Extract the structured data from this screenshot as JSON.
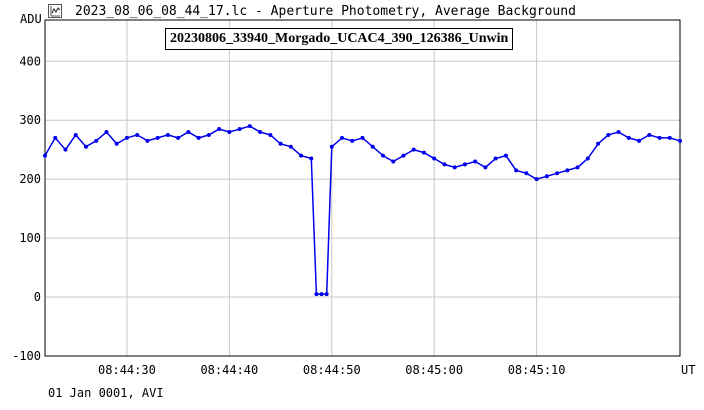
{
  "window": {
    "title": "2023_08_06_08_44_17.lc - Aperture Photometry, Average Background"
  },
  "icons": {
    "app": "chart-app-icon"
  },
  "footer": {
    "text": "01 Jan 0001, AVI"
  },
  "colors": {
    "series": "#0000ee",
    "grid": "#c8c8c8",
    "axis": "#000000"
  },
  "chart_data": {
    "type": "line",
    "title": "20230806_33940_Morgado_UCAC4_390_126386_Unwin",
    "ylabel": "ADU",
    "xlabel": "UT",
    "ylim": [
      -100,
      470
    ],
    "xlim": [
      "08:44:22",
      "08:45:24"
    ],
    "yticks": [
      -100,
      0,
      100,
      200,
      300,
      400
    ],
    "xticks": [
      "08:44:30",
      "08:44:40",
      "08:44:50",
      "08:45:00",
      "08:45:10"
    ],
    "grid": true,
    "series": [
      {
        "points": [
          [
            "08:44:22",
            240
          ],
          [
            "08:44:23",
            270
          ],
          [
            "08:44:24",
            250
          ],
          [
            "08:44:25",
            275
          ],
          [
            "08:44:26",
            255
          ],
          [
            "08:44:27",
            265
          ],
          [
            "08:44:28",
            280
          ],
          [
            "08:44:29",
            260
          ],
          [
            "08:44:30",
            270
          ],
          [
            "08:44:31",
            275
          ],
          [
            "08:44:32",
            265
          ],
          [
            "08:44:33",
            270
          ],
          [
            "08:44:34",
            275
          ],
          [
            "08:44:35",
            270
          ],
          [
            "08:44:36",
            280
          ],
          [
            "08:44:37",
            270
          ],
          [
            "08:44:38",
            275
          ],
          [
            "08:44:39",
            285
          ],
          [
            "08:44:40",
            280
          ],
          [
            "08:44:41",
            285
          ],
          [
            "08:44:42",
            290
          ],
          [
            "08:44:43",
            280
          ],
          [
            "08:44:44",
            275
          ],
          [
            "08:44:45",
            260
          ],
          [
            "08:44:46",
            255
          ],
          [
            "08:44:47",
            240
          ],
          [
            "08:44:48",
            235
          ],
          [
            "08:44:48.5",
            5
          ],
          [
            "08:44:49",
            5
          ],
          [
            "08:44:49.5",
            5
          ],
          [
            "08:44:50",
            255
          ],
          [
            "08:44:51",
            270
          ],
          [
            "08:44:52",
            265
          ],
          [
            "08:44:53",
            270
          ],
          [
            "08:44:54",
            255
          ],
          [
            "08:44:55",
            240
          ],
          [
            "08:44:56",
            230
          ],
          [
            "08:44:57",
            240
          ],
          [
            "08:44:58",
            250
          ],
          [
            "08:44:59",
            245
          ],
          [
            "08:45:00",
            235
          ],
          [
            "08:45:01",
            225
          ],
          [
            "08:45:02",
            220
          ],
          [
            "08:45:03",
            225
          ],
          [
            "08:45:04",
            230
          ],
          [
            "08:45:05",
            220
          ],
          [
            "08:45:06",
            235
          ],
          [
            "08:45:07",
            240
          ],
          [
            "08:45:08",
            215
          ],
          [
            "08:45:09",
            210
          ],
          [
            "08:45:10",
            200
          ],
          [
            "08:45:11",
            205
          ],
          [
            "08:45:12",
            210
          ],
          [
            "08:45:13",
            215
          ],
          [
            "08:45:14",
            220
          ],
          [
            "08:45:15",
            235
          ],
          [
            "08:45:16",
            260
          ],
          [
            "08:45:17",
            275
          ],
          [
            "08:45:18",
            280
          ],
          [
            "08:45:19",
            270
          ],
          [
            "08:45:20",
            265
          ],
          [
            "08:45:21",
            275
          ],
          [
            "08:45:22",
            270
          ],
          [
            "08:45:23",
            270
          ],
          [
            "08:45:24",
            265
          ]
        ]
      }
    ]
  }
}
